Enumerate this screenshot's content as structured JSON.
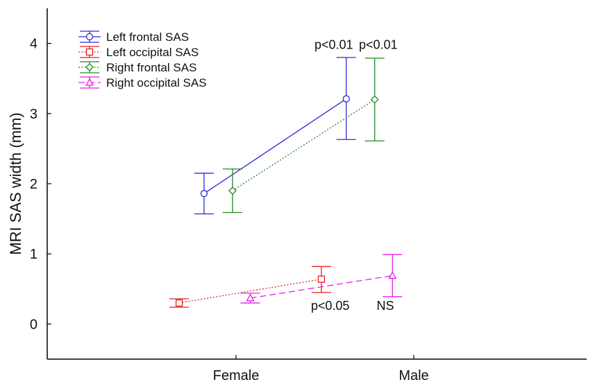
{
  "chart_data": {
    "type": "line",
    "ylabel": "MRI SAS width (mm)",
    "xlabel": "",
    "categories": [
      "Female",
      "Male"
    ],
    "ylim": [
      -0.5,
      4.5
    ],
    "yticks": [
      0,
      1,
      2,
      3,
      4
    ],
    "grid": false,
    "legend_position": "top-left",
    "series": [
      {
        "name": "Left frontal SAS",
        "color": "#2b2bd6",
        "marker": "circle",
        "line_style": "solid",
        "x": [
          -0.18,
          0.62
        ],
        "values": [
          1.86,
          3.21
        ],
        "err_low": [
          1.57,
          2.63
        ],
        "err_high": [
          2.15,
          3.8
        ]
      },
      {
        "name": "Left occipital SAS",
        "color": "#e81e1e",
        "marker": "square",
        "line_style": "dotted",
        "x": [
          -0.32,
          0.48
        ],
        "values": [
          0.3,
          0.64
        ],
        "err_low": [
          0.24,
          0.45
        ],
        "err_high": [
          0.36,
          0.82
        ]
      },
      {
        "name": "Right frontal SAS",
        "color": "#1f8a1f",
        "marker": "diamond",
        "line_style": "dotted",
        "x": [
          -0.02,
          0.78
        ],
        "values": [
          1.9,
          3.2
        ],
        "err_low": [
          1.59,
          2.61
        ],
        "err_high": [
          2.21,
          3.79
        ]
      },
      {
        "name": "Right occipital SAS",
        "color": "#e81ee8",
        "marker": "triangle",
        "line_style": "dashed",
        "x": [
          0.08,
          0.88
        ],
        "values": [
          0.37,
          0.69
        ],
        "err_low": [
          0.3,
          0.39
        ],
        "err_high": [
          0.44,
          0.99
        ]
      }
    ],
    "annotations": [
      {
        "text": "p<0.01",
        "x": 0.55,
        "y": 3.98
      },
      {
        "text": "p<0.01",
        "x": 0.8,
        "y": 3.98
      },
      {
        "text": "p<0.05",
        "x": 0.53,
        "y": 0.26
      },
      {
        "text": "NS",
        "x": 0.84,
        "y": 0.26
      }
    ]
  }
}
